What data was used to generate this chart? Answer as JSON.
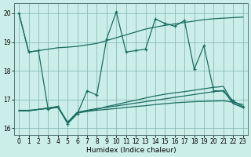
{
  "xlabel": "Humidex (Indice chaleur)",
  "background_color": "#cceee8",
  "grid_color": "#88bbbb",
  "line_color": "#1a6e62",
  "xlim": [
    -0.5,
    23.5
  ],
  "ylim": [
    15.75,
    20.35
  ],
  "yticks": [
    16,
    17,
    18,
    19,
    20
  ],
  "xticks": [
    0,
    1,
    2,
    3,
    4,
    5,
    6,
    7,
    8,
    9,
    10,
    11,
    12,
    13,
    14,
    15,
    16,
    17,
    18,
    19,
    20,
    21,
    22,
    23
  ],
  "line_main": [
    20.0,
    18.65,
    18.7,
    18.75,
    18.8,
    18.82,
    18.85,
    18.9,
    18.95,
    19.05,
    19.15,
    19.25,
    19.35,
    19.45,
    19.52,
    19.58,
    19.63,
    19.68,
    19.73,
    19.78,
    19.81,
    19.83,
    19.85,
    19.87
  ],
  "line_volatile": [
    20.0,
    18.65,
    18.7,
    16.65,
    16.75,
    16.15,
    16.5,
    17.3,
    17.15,
    19.1,
    20.05,
    18.65,
    18.7,
    18.75,
    19.8,
    19.65,
    19.55,
    19.75,
    18.05,
    18.87,
    17.3,
    17.3,
    16.95,
    16.75
  ],
  "line_lower1": [
    16.6,
    16.6,
    16.65,
    16.7,
    16.75,
    16.2,
    16.55,
    16.6,
    16.65,
    16.75,
    16.82,
    16.9,
    16.97,
    17.05,
    17.12,
    17.18,
    17.23,
    17.27,
    17.32,
    17.37,
    17.42,
    17.45,
    16.87,
    16.72
  ],
  "line_lower2": [
    16.6,
    16.6,
    16.65,
    16.7,
    16.75,
    16.2,
    16.55,
    16.62,
    16.68,
    16.72,
    16.77,
    16.82,
    16.87,
    16.92,
    16.97,
    17.02,
    17.07,
    17.12,
    17.17,
    17.22,
    17.27,
    17.3,
    16.85,
    16.72
  ],
  "line_lower3": [
    16.62,
    16.62,
    16.65,
    16.68,
    16.72,
    16.18,
    16.52,
    16.58,
    16.62,
    16.65,
    16.68,
    16.72,
    16.75,
    16.78,
    16.82,
    16.85,
    16.88,
    16.9,
    16.92,
    16.93,
    16.94,
    16.95,
    16.9,
    16.82
  ]
}
